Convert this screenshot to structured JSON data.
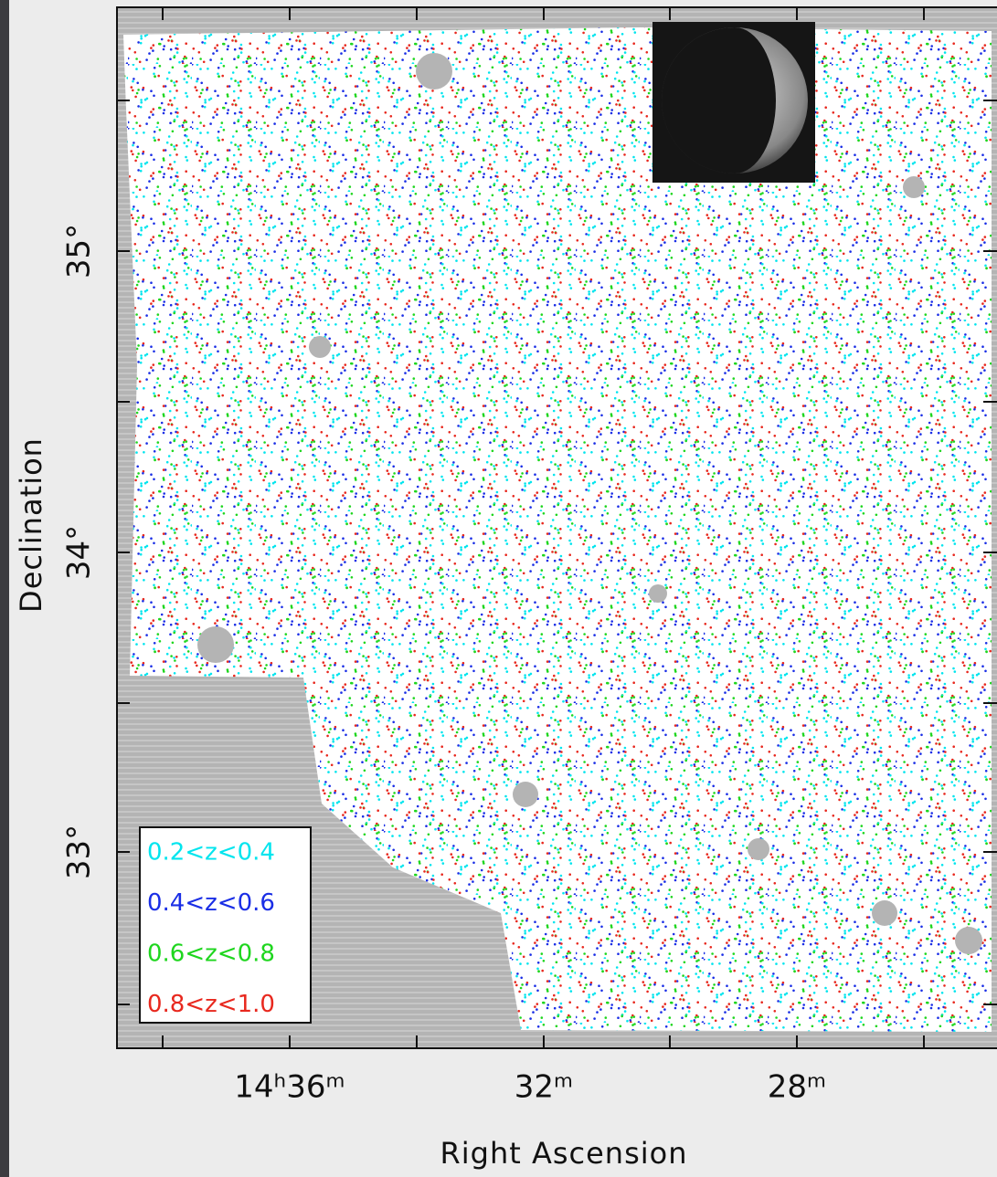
{
  "axes": {
    "x_label": "Right Ascension",
    "y_label": "Declination",
    "x_ticks": [
      "14ʰ36ᵐ",
      "32ᵐ",
      "28ᵐ"
    ],
    "y_ticks": [
      "33°",
      "34°",
      "35°"
    ]
  },
  "legend": [
    {
      "label": "0.2<z<0.4",
      "color": "#00e5ee"
    },
    {
      "label": "0.4<z<0.6",
      "color": "#1a2ee6"
    },
    {
      "label": "0.6<z<0.8",
      "color": "#1ed61e"
    },
    {
      "label": "0.8<z<1.0",
      "color": "#e8281e"
    }
  ]
}
